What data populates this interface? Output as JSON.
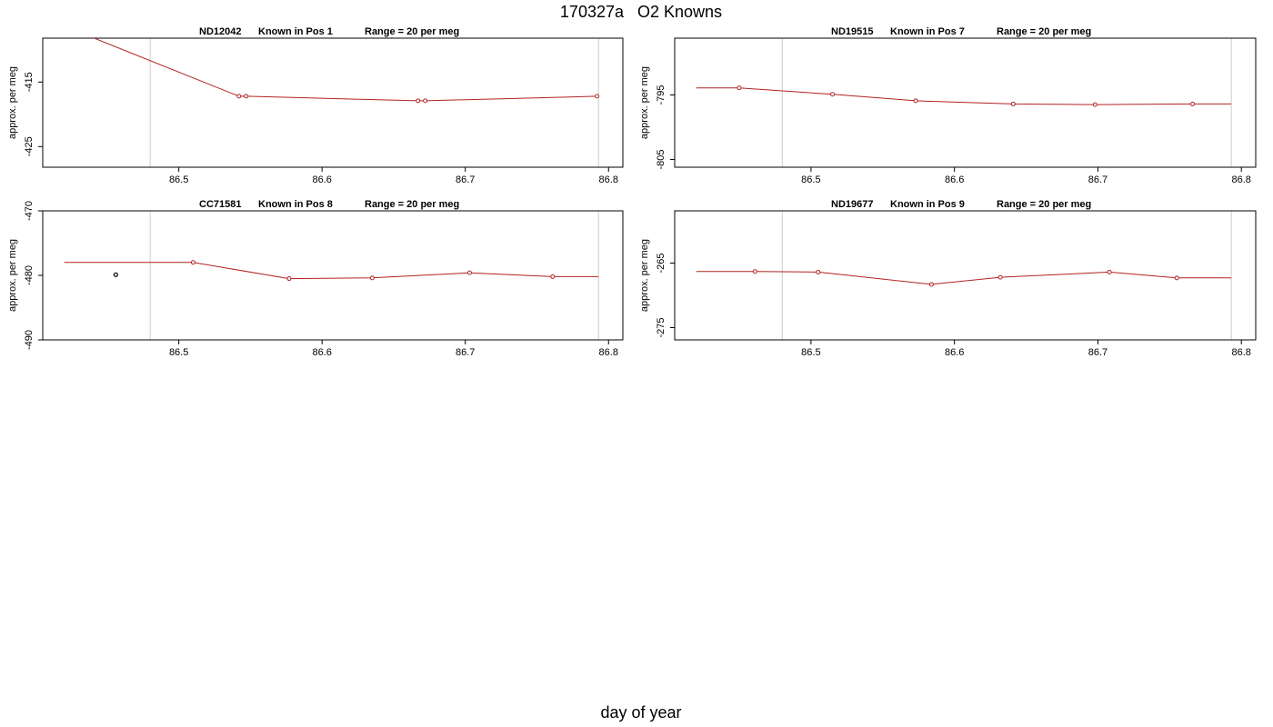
{
  "title": "170327a   O2 Knowns",
  "xlabel": "day of year",
  "colors": {
    "series": "#b22222",
    "vline": "#cccccc",
    "frame": "#000000",
    "outlier": "#000000"
  },
  "chart_data": [
    {
      "type": "line",
      "title_parts": [
        "ND12042",
        "Known in Pos 1",
        "Range = 20 per meg"
      ],
      "ylabel": "approx. per meg",
      "xlim": [
        86.405,
        86.81
      ],
      "ylim": [
        -428.2,
        -408.2
      ],
      "xticks": [
        "86.5",
        "86.6",
        "86.7",
        "86.8"
      ],
      "yticks": [
        "-415",
        "-425"
      ],
      "vlines": [
        86.48,
        86.793
      ],
      "series": [
        {
          "x": [
            86.405,
            86.542,
            86.547,
            86.667,
            86.672,
            86.792
          ],
          "y": [
            -405.0,
            -417.2,
            -417.2,
            -417.9,
            -417.9,
            -417.2
          ],
          "marker": [
            false,
            true,
            true,
            true,
            true,
            true
          ]
        }
      ],
      "outliers": []
    },
    {
      "type": "line",
      "title_parts": [
        "ND19515",
        "Known in Pos 7",
        "Range = 20 per meg"
      ],
      "ylabel": "approx. per meg",
      "xlim": [
        86.405,
        86.81
      ],
      "ylim": [
        -806.2,
        -786.2
      ],
      "xticks": [
        "86.5",
        "86.6",
        "86.7",
        "86.8"
      ],
      "yticks": [
        "-795",
        "-805"
      ],
      "vlines": [
        86.48,
        86.793
      ],
      "series": [
        {
          "x": [
            86.42,
            86.45,
            86.515,
            86.573,
            86.641,
            86.698,
            86.766,
            86.793
          ],
          "y": [
            -793.9,
            -793.9,
            -794.9,
            -795.9,
            -796.4,
            -796.5,
            -796.4,
            -796.4
          ],
          "marker": [
            false,
            true,
            true,
            true,
            true,
            true,
            true,
            false
          ]
        }
      ],
      "outliers": []
    },
    {
      "type": "line",
      "title_parts": [
        "CC71581",
        "Known in Pos 8",
        "Range = 20 per meg"
      ],
      "ylabel": "approx. per meg",
      "xlim": [
        86.405,
        86.81
      ],
      "ylim": [
        -490,
        -470
      ],
      "xticks": [
        "86.5",
        "86.6",
        "86.7",
        "86.8"
      ],
      "yticks": [
        "-470",
        "-480",
        "-490"
      ],
      "vlines": [
        86.48,
        86.793
      ],
      "series": [
        {
          "x": [
            86.42,
            86.51,
            86.577,
            86.635,
            86.703,
            86.761,
            86.793
          ],
          "y": [
            -478.0,
            -478.0,
            -480.5,
            -480.4,
            -479.6,
            -480.2,
            -480.2
          ],
          "marker": [
            false,
            true,
            true,
            true,
            true,
            true,
            false
          ]
        }
      ],
      "outliers": [
        {
          "x": 86.456,
          "y": -479.9
        }
      ]
    },
    {
      "type": "line",
      "title_parts": [
        "ND19677",
        "Known in Pos 9",
        "Range = 20 per meg"
      ],
      "ylabel": "approx. per meg",
      "xlim": [
        86.405,
        86.81
      ],
      "ylim": [
        -276.9,
        -256.9
      ],
      "xticks": [
        "86.5",
        "86.6",
        "86.7",
        "86.8"
      ],
      "yticks": [
        "-265",
        "-275"
      ],
      "vlines": [
        86.48,
        86.793
      ],
      "series": [
        {
          "x": [
            86.42,
            86.461,
            86.505,
            86.584,
            86.632,
            86.708,
            86.755,
            86.793
          ],
          "y": [
            -266.3,
            -266.3,
            -266.4,
            -268.3,
            -267.2,
            -266.4,
            -267.3,
            -267.3
          ],
          "marker": [
            false,
            true,
            true,
            true,
            true,
            true,
            true,
            false
          ]
        }
      ],
      "outliers": []
    }
  ]
}
